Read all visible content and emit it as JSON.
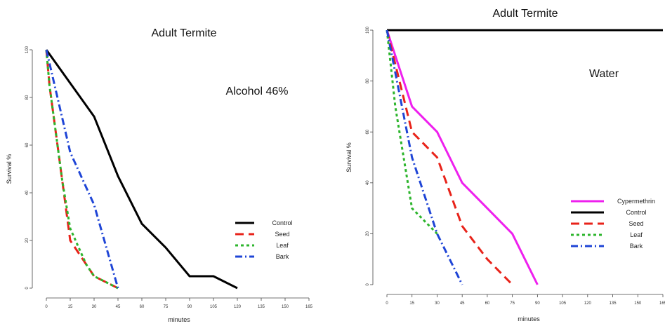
{
  "chart_data": [
    {
      "type": "line",
      "title": "Adult Termite",
      "annotation": "Alcohol 46%",
      "xlabel": "minutes",
      "ylabel": "Survival %",
      "xlim": [
        0,
        165
      ],
      "ylim": [
        0,
        100
      ],
      "x_ticks": [
        "0",
        "15",
        "30",
        "45",
        "60",
        "75",
        "90",
        "105",
        "120",
        "135",
        "150",
        "165"
      ],
      "y_ticks": [
        "0",
        "20",
        "40",
        "60",
        "80",
        "100"
      ],
      "legend_position": "bottom-right",
      "series": [
        {
          "name": "Control",
          "color": "#000000",
          "dash": "solid",
          "points": [
            [
              0,
              100
            ],
            [
              15,
              86
            ],
            [
              30,
              72
            ],
            [
              45,
              47
            ],
            [
              60,
              27
            ],
            [
              75,
              17
            ],
            [
              90,
              5
            ],
            [
              105,
              5
            ],
            [
              120,
              0
            ]
          ]
        },
        {
          "name": "Seed",
          "color": "#e8231a",
          "dash": "long-dash",
          "points": [
            [
              0,
              100
            ],
            [
              2,
              85
            ],
            [
              10,
              45
            ],
            [
              15,
              20
            ],
            [
              25,
              10
            ],
            [
              30,
              5
            ],
            [
              45,
              0
            ]
          ]
        },
        {
          "name": "Leaf",
          "color": "#2db52d",
          "dash": "dotted",
          "points": [
            [
              0,
              100
            ],
            [
              2,
              85
            ],
            [
              10,
              45
            ],
            [
              15,
              25
            ],
            [
              25,
              10
            ],
            [
              30,
              5
            ],
            [
              45,
              0
            ]
          ]
        },
        {
          "name": "Bark",
          "color": "#1f45d6",
          "dash": "dash-dot",
          "points": [
            [
              0,
              100
            ],
            [
              15,
              57
            ],
            [
              30,
              35
            ],
            [
              45,
              0
            ]
          ]
        }
      ]
    },
    {
      "type": "line",
      "title": "Adult Termite",
      "annotation": "Water",
      "xlabel": "minutes",
      "ylabel": "Survival %",
      "xlim": [
        0,
        165
      ],
      "ylim": [
        0,
        100
      ],
      "x_ticks": [
        "0",
        "15",
        "30",
        "45",
        "60",
        "75",
        "90",
        "105",
        "120",
        "135",
        "150",
        "165"
      ],
      "y_ticks": [
        "0",
        "20",
        "40",
        "60",
        "80",
        "100"
      ],
      "legend_position": "bottom-right",
      "series": [
        {
          "name": "Cypermethrin",
          "color": "#ee20ee",
          "dash": "solid",
          "points": [
            [
              0,
              100
            ],
            [
              15,
              70
            ],
            [
              30,
              60
            ],
            [
              45,
              40
            ],
            [
              60,
              30
            ],
            [
              75,
              20
            ],
            [
              90,
              0
            ]
          ]
        },
        {
          "name": "Control",
          "color": "#000000",
          "dash": "solid",
          "points": [
            [
              0,
              100
            ],
            [
              165,
              100
            ]
          ]
        },
        {
          "name": "Seed",
          "color": "#e8231a",
          "dash": "long-dash",
          "points": [
            [
              0,
              100
            ],
            [
              15,
              60
            ],
            [
              30,
              50
            ],
            [
              45,
              23
            ],
            [
              60,
              10
            ],
            [
              75,
              0
            ]
          ]
        },
        {
          "name": "Leaf",
          "color": "#2db52d",
          "dash": "dotted",
          "points": [
            [
              0,
              100
            ],
            [
              5,
              70
            ],
            [
              15,
              30
            ],
            [
              30,
              20
            ]
          ]
        },
        {
          "name": "Bark",
          "color": "#1f45d6",
          "dash": "dash-dot",
          "points": [
            [
              0,
              100
            ],
            [
              15,
              50
            ],
            [
              30,
              20
            ],
            [
              45,
              0
            ]
          ]
        }
      ]
    }
  ]
}
